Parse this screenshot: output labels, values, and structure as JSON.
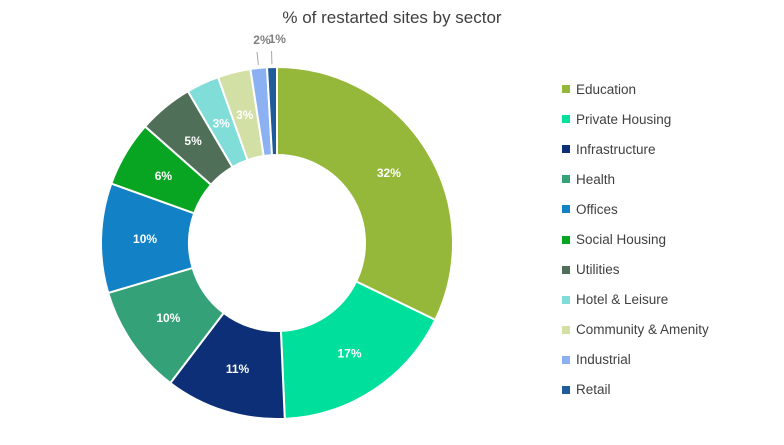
{
  "chart_data": {
    "type": "pie",
    "variant": "donut",
    "title": "% of restarted sites by sector",
    "legend_position": "right",
    "slices": [
      {
        "label": "Education",
        "value": 32,
        "display": "32%",
        "color": "#95b83a",
        "text_color": "#ffffff"
      },
      {
        "label": "Private Housing",
        "value": 17,
        "display": "17%",
        "color": "#00e09c",
        "text_color": "#ffffff"
      },
      {
        "label": "Infrastructure",
        "value": 11,
        "display": "11%",
        "color": "#0c2f78",
        "text_color": "#ffffff"
      },
      {
        "label": "Health",
        "value": 10,
        "display": "10%",
        "color": "#35a178",
        "text_color": "#ffffff"
      },
      {
        "label": "Offices",
        "value": 10,
        "display": "10%",
        "color": "#1381c6",
        "text_color": "#ffffff"
      },
      {
        "label": "Social Housing",
        "value": 6,
        "display": "6%",
        "color": "#07a521",
        "text_color": "#ffffff"
      },
      {
        "label": "Utilities",
        "value": 5,
        "display": "5%",
        "color": "#4f6f58",
        "text_color": "#ffffff"
      },
      {
        "label": "Hotel & Leisure",
        "value": 3,
        "display": "3%",
        "color": "#80ddd8",
        "text_color": "#ffffff"
      },
      {
        "label": "Community & Amenity",
        "value": 3,
        "display": "3%",
        "color": "#d2e0a6",
        "text_color": "#ffffff"
      },
      {
        "label": "Industrial",
        "value": 1.5,
        "display": "2%",
        "color": "#8bb1f2",
        "text_color": "#7f7f7f",
        "label_outside": true
      },
      {
        "label": "Retail",
        "value": 0.9,
        "display": "1%",
        "color": "#1f5c99",
        "text_color": "#7f7f7f",
        "label_outside": true
      }
    ]
  }
}
